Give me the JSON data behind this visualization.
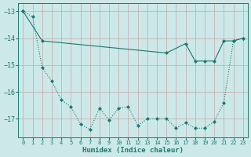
{
  "xlabel": "Humidex (Indice chaleur)",
  "background_color": "#cce8e8",
  "grid_color": "#b8d8d8",
  "line_color": "#1a7a6e",
  "x": [
    0,
    1,
    2,
    3,
    4,
    5,
    6,
    7,
    8,
    9,
    10,
    11,
    12,
    13,
    14,
    15,
    16,
    17,
    18,
    19,
    20,
    21,
    22,
    23
  ],
  "line1_y": [
    -13.0,
    -13.2,
    -15.1,
    -15.6,
    -16.3,
    -16.55,
    -17.2,
    -17.4,
    -16.6,
    -17.05,
    -16.6,
    -16.55,
    -17.25,
    -17.0,
    -17.0,
    -17.0,
    -17.35,
    -17.15,
    -17.35,
    -17.35,
    -17.1,
    -16.4,
    -14.1,
    -14.0
  ],
  "line2_y": [
    -13.0,
    null,
    -14.1,
    null,
    null,
    null,
    null,
    null,
    null,
    null,
    null,
    null,
    null,
    null,
    null,
    -14.55,
    null,
    -14.2,
    -14.85,
    -14.85,
    -14.85,
    -14.1,
    -14.1,
    -14.0
  ],
  "line2_x": [
    0,
    2,
    15,
    17,
    18,
    19,
    20,
    21,
    22,
    23
  ],
  "line2_vals": [
    -13.0,
    -14.1,
    -14.55,
    -14.2,
    -14.85,
    -14.85,
    -14.85,
    -14.1,
    -14.1,
    -14.0
  ],
  "ylim": [
    -17.7,
    -12.7
  ],
  "xlim": [
    -0.5,
    23.5
  ],
  "yticks": [
    -17,
    -16,
    -15,
    -14,
    -13
  ],
  "xticks": [
    0,
    1,
    2,
    3,
    4,
    5,
    6,
    7,
    8,
    9,
    10,
    11,
    12,
    13,
    14,
    15,
    16,
    17,
    18,
    19,
    20,
    21,
    22,
    23
  ]
}
